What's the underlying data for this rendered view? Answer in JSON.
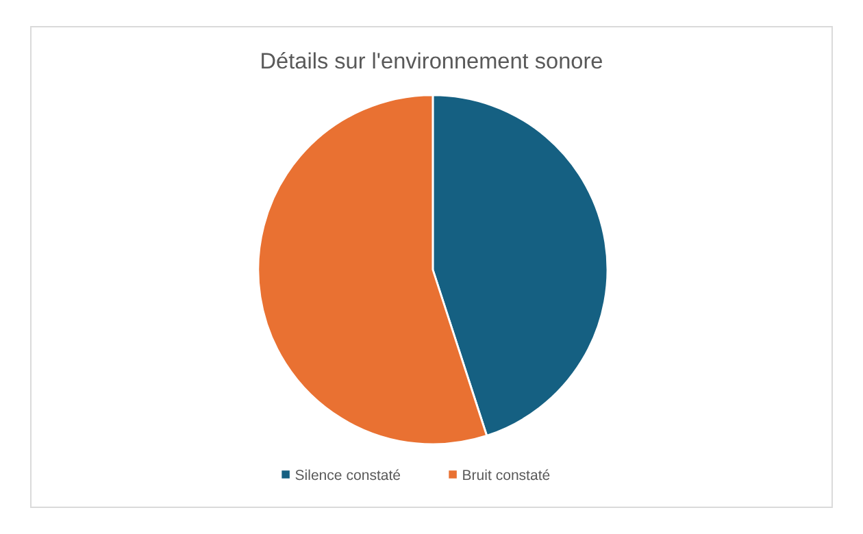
{
  "chart_data": {
    "type": "pie",
    "title": "Détails sur l'environnement sonore",
    "categories": [
      "Silence constaté",
      "Bruit constaté"
    ],
    "values": [
      45,
      55
    ],
    "colors": [
      "#156082",
      "#e97132"
    ],
    "legend": "bottom"
  }
}
